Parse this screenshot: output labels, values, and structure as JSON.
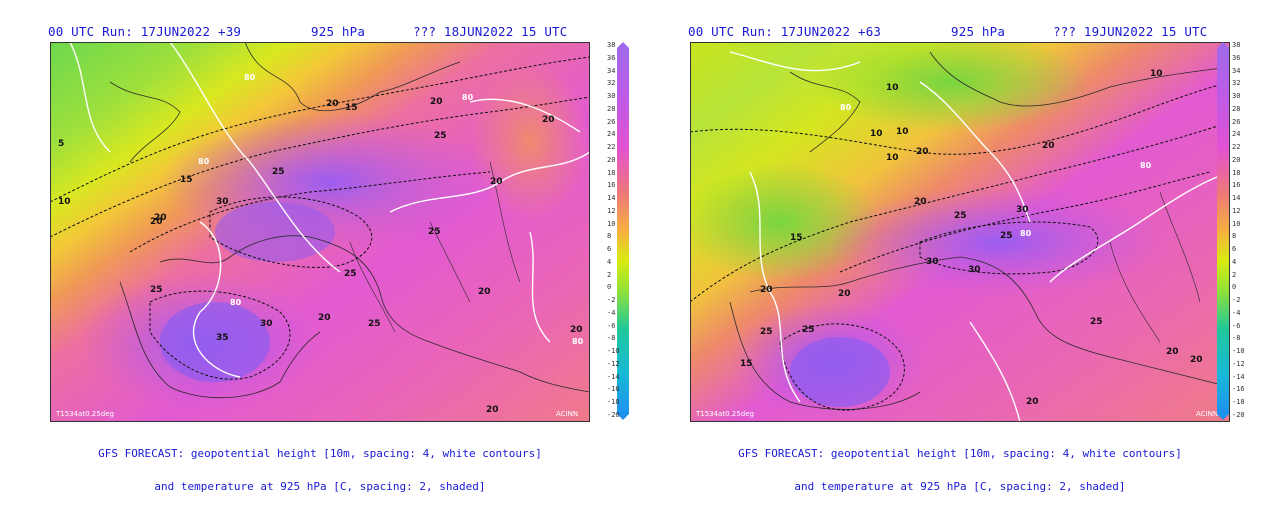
{
  "panels": [
    {
      "header_left": "00 UTC Run: 17JUN2022 +39",
      "header_mid": "925 hPa",
      "header_right": "??? 18JUN2022 15 UTC",
      "footer_line1": "GFS FORECAST: geopotential height [10m, spacing: 4, white contours]",
      "footer_line2": "and temperature at 925 hPa [C, spacing: 2, shaded]",
      "model_tag": "T1534at0.25deg",
      "credit": "ACINN",
      "temp_labels": [
        "5",
        "10",
        "15",
        "20",
        "25",
        "30",
        "35",
        "20",
        "25",
        "20",
        "25",
        "20",
        "15",
        "20",
        "20",
        "25",
        "30",
        "20",
        "25",
        "20",
        "25",
        "20",
        "20"
      ],
      "height_labels": [
        "80",
        "80",
        "80",
        "80",
        "80"
      ]
    },
    {
      "header_left": "00 UTC Run: 17JUN2022 +63",
      "header_mid": "925 hPa",
      "header_right": "??? 19JUN2022 15 UTC",
      "footer_line1": "GFS FORECAST: geopotential height [10m, spacing: 4, white contours]",
      "footer_line2": "and temperature at 925 hPa [C, spacing: 2, shaded]",
      "model_tag": "T1534at0.25deg",
      "credit": "ACINN",
      "temp_labels": [
        "10",
        "10",
        "10",
        "10",
        "15",
        "20",
        "20",
        "25",
        "30",
        "30",
        "30",
        "25",
        "20",
        "25",
        "20",
        "15",
        "20",
        "25",
        "20",
        "20",
        "25",
        "20",
        "10"
      ],
      "height_labels": [
        "80",
        "80",
        "80"
      ]
    }
  ],
  "colorbar": {
    "min": -20,
    "max": 38,
    "step": 2,
    "ticks": [
      "38",
      "36",
      "34",
      "32",
      "30",
      "28",
      "26",
      "24",
      "22",
      "20",
      "18",
      "16",
      "14",
      "12",
      "10",
      "8",
      "6",
      "4",
      "2",
      "0",
      "-2",
      "-4",
      "-6",
      "-8",
      "-10",
      "-12",
      "-14",
      "-16",
      "-18",
      "-20"
    ],
    "colors": [
      "#1e8cf0",
      "#18b8d8",
      "#20c89a",
      "#3cd24a",
      "#8ee03a",
      "#d8ec10",
      "#f4dc20",
      "#f6b040",
      "#f2905a",
      "#ee7878",
      "#ea64a6",
      "#e252d2",
      "#c05ae6",
      "#9e6aea"
    ]
  }
}
